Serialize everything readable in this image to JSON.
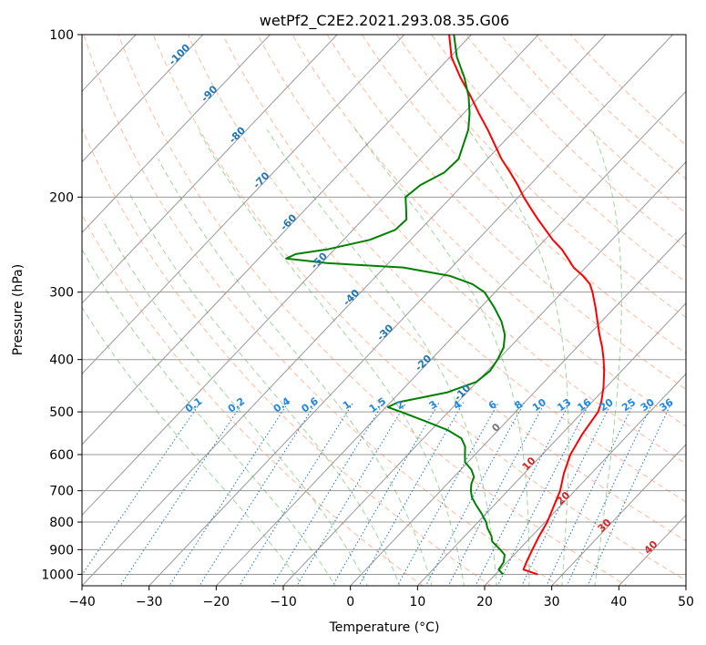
{
  "chart_data": {
    "type": "line",
    "subtype": "skew-t log-p diagram",
    "title": "wetPf2_C2E2.2021.293.08.35.G06",
    "xlabel": "Temperature (°C)",
    "ylabel": "Pressure (hPa)",
    "xlim": [
      -40,
      50
    ],
    "ylim": [
      1050,
      100
    ],
    "x_ticks": [
      -40,
      -30,
      -20,
      -10,
      0,
      10,
      20,
      30,
      40,
      50
    ],
    "x_tick_labels": [
      "−40",
      "−30",
      "−20",
      "−10",
      "0",
      "10",
      "20",
      "30",
      "40",
      "50"
    ],
    "y_ticks": [
      1000,
      900,
      800,
      700,
      600,
      500,
      400,
      300,
      200,
      100
    ],
    "y_tick_labels": [
      "1000",
      "900",
      "800",
      "700",
      "600",
      "500",
      "400",
      "300",
      "200",
      "100"
    ],
    "y_scale": "log",
    "grid": true,
    "series": [
      {
        "name": "Temperature",
        "color": "#ff0000",
        "points": [
          [
            1000,
            26.3
          ],
          [
            980,
            23.5
          ],
          [
            950,
            22.9
          ],
          [
            900,
            22.0
          ],
          [
            850,
            21.1
          ],
          [
            800,
            20.3
          ],
          [
            750,
            19.1
          ],
          [
            700,
            17.8
          ],
          [
            650,
            15.9
          ],
          [
            600,
            14.2
          ],
          [
            550,
            13.1
          ],
          [
            500,
            12.3
          ],
          [
            480,
            11.4
          ],
          [
            450,
            9.6
          ],
          [
            420,
            7.4
          ],
          [
            400,
            5.7
          ],
          [
            380,
            3.8
          ],
          [
            360,
            1.6
          ],
          [
            340,
            -0.6
          ],
          [
            320,
            -2.9
          ],
          [
            300,
            -5.5
          ],
          [
            290,
            -7.0
          ],
          [
            280,
            -9.2
          ],
          [
            270,
            -11.8
          ],
          [
            260,
            -13.9
          ],
          [
            250,
            -16.1
          ],
          [
            240,
            -18.8
          ],
          [
            230,
            -21.3
          ],
          [
            220,
            -23.9
          ],
          [
            210,
            -26.5
          ],
          [
            200,
            -29.2
          ],
          [
            190,
            -31.8
          ],
          [
            180,
            -34.7
          ],
          [
            170,
            -37.9
          ],
          [
            160,
            -40.9
          ],
          [
            150,
            -44.1
          ],
          [
            140,
            -47.7
          ],
          [
            130,
            -51.4
          ],
          [
            120,
            -55.6
          ],
          [
            110,
            -59.8
          ],
          [
            100,
            -63.3
          ]
        ]
      },
      {
        "name": "Dewpoint",
        "color": "#008000",
        "points": [
          [
            1000,
            21.1
          ],
          [
            980,
            19.8
          ],
          [
            950,
            19.5
          ],
          [
            920,
            18.6
          ],
          [
            900,
            17.2
          ],
          [
            870,
            14.9
          ],
          [
            850,
            14.0
          ],
          [
            820,
            12.2
          ],
          [
            800,
            11.2
          ],
          [
            770,
            9.2
          ],
          [
            740,
            7.0
          ],
          [
            720,
            5.6
          ],
          [
            700,
            4.5
          ],
          [
            680,
            3.6
          ],
          [
            660,
            3.0
          ],
          [
            640,
            1.6
          ],
          [
            620,
            -0.4
          ],
          [
            600,
            -1.5
          ],
          [
            580,
            -2.6
          ],
          [
            560,
            -4.3
          ],
          [
            540,
            -7.6
          ],
          [
            520,
            -12.2
          ],
          [
            500,
            -17.1
          ],
          [
            490,
            -19.7
          ],
          [
            480,
            -18.9
          ],
          [
            460,
            -12.9
          ],
          [
            440,
            -10.1
          ],
          [
            420,
            -9.6
          ],
          [
            400,
            -10.1
          ],
          [
            380,
            -10.9
          ],
          [
            360,
            -12.5
          ],
          [
            340,
            -14.9
          ],
          [
            320,
            -18.0
          ],
          [
            300,
            -21.6
          ],
          [
            290,
            -24.5
          ],
          [
            280,
            -29.0
          ],
          [
            270,
            -37.2
          ],
          [
            265,
            -49.2
          ],
          [
            260,
            -55.9
          ],
          [
            255,
            -55.1
          ],
          [
            250,
            -51.1
          ],
          [
            240,
            -46.1
          ],
          [
            230,
            -43.7
          ],
          [
            220,
            -43.5
          ],
          [
            210,
            -45.1
          ],
          [
            200,
            -46.8
          ],
          [
            190,
            -46.3
          ],
          [
            180,
            -44.5
          ],
          [
            170,
            -44.3
          ],
          [
            160,
            -45.6
          ],
          [
            150,
            -47.0
          ],
          [
            140,
            -49.1
          ],
          [
            130,
            -51.7
          ],
          [
            120,
            -55.0
          ],
          [
            110,
            -59.0
          ],
          [
            100,
            -62.6
          ]
        ]
      }
    ],
    "dry_adiabats_K": [
      280,
      290,
      300,
      310,
      320,
      330,
      340,
      350,
      360,
      370,
      380,
      390,
      400,
      410,
      420,
      430,
      440
    ],
    "moist_adiabats_C": [
      -10,
      -5,
      0,
      5,
      10,
      15,
      20,
      25,
      30,
      35
    ],
    "mixing_ratio_labels": [
      "0.1",
      "0.2",
      "0.4",
      "0.6",
      "1",
      "1.5",
      "2",
      "3",
      "4",
      "6",
      "8",
      "10",
      "13",
      "16",
      "20",
      "25",
      "30",
      "36"
    ],
    "mixing_ratio_values": [
      0.1,
      0.2,
      0.4,
      0.6,
      1,
      1.5,
      2,
      3,
      4,
      6,
      8,
      10,
      13,
      16,
      20,
      25,
      30,
      36
    ],
    "blue_isotherm_labels": [
      {
        "value": -100,
        "text": "-100",
        "p": 110
      },
      {
        "value": -90,
        "text": "-90",
        "p": 130
      },
      {
        "value": -80,
        "text": "-80",
        "p": 155
      },
      {
        "value": -70,
        "text": "-70",
        "p": 188
      },
      {
        "value": -60,
        "text": "-60",
        "p": 225
      },
      {
        "value": -50,
        "text": "-50",
        "p": 265
      },
      {
        "value": -40,
        "text": "-40",
        "p": 310
      },
      {
        "value": -30,
        "text": "-30",
        "p": 360
      },
      {
        "value": -20,
        "text": "-20",
        "p": 410
      },
      {
        "value": -10,
        "text": "-10",
        "p": 465
      }
    ],
    "red_isotherm_labels": [
      {
        "value": 0,
        "text": "0",
        "p": 540,
        "color": "#777777"
      },
      {
        "value": 10,
        "text": "10",
        "p": 630,
        "color": "#d62728"
      },
      {
        "value": 20,
        "text": "20",
        "p": 730,
        "color": "#d62728"
      },
      {
        "value": 30,
        "text": "30",
        "p": 820,
        "color": "#d62728"
      },
      {
        "value": 40,
        "text": "40",
        "p": 900,
        "color": "#d62728"
      }
    ],
    "colors": {
      "isotherm": "#999999",
      "isobar": "#999999",
      "dry_adiabat": "#ff7f50",
      "moist_adiabat": "#2ca02c",
      "mixing_ratio": "#1f77b4",
      "mixing_label": "#1e88e5",
      "isotherm_label": "#1f77b4"
    }
  }
}
